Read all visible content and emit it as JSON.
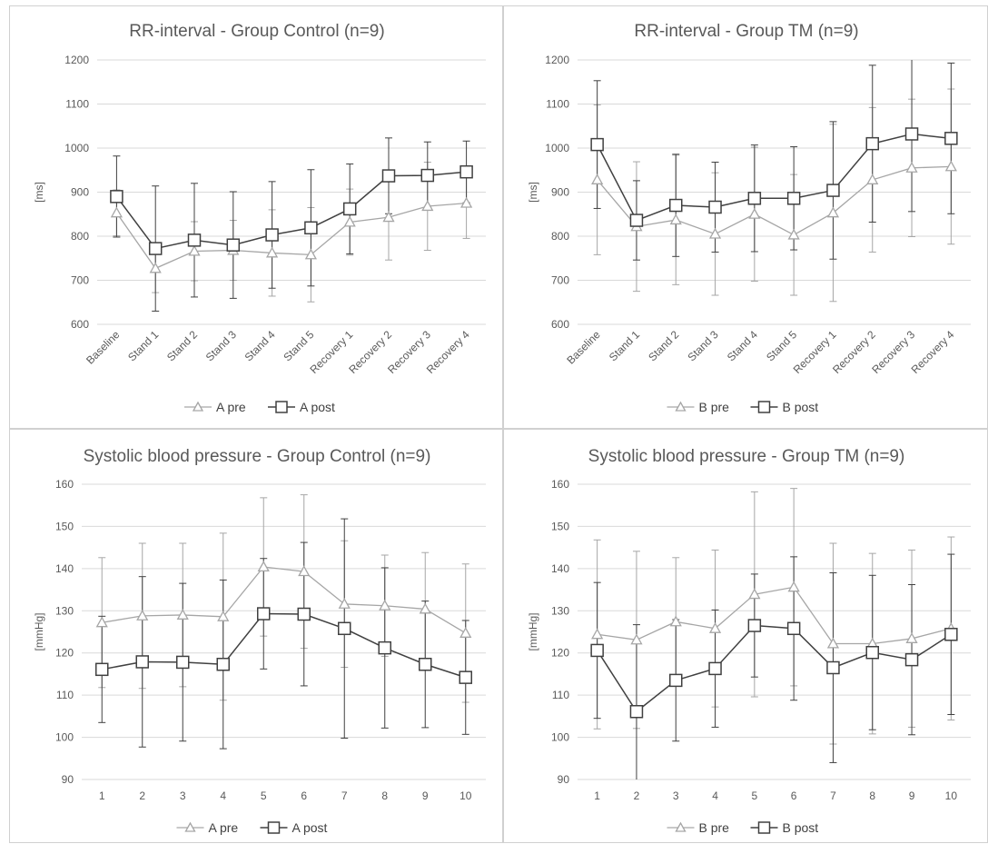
{
  "chart_data": [
    {
      "type": "line",
      "title": "RR-interval - Group Control (n=9)",
      "ylabel": "[ms]",
      "xlabel": "",
      "ylim": [
        600,
        1200
      ],
      "yticks": [
        600,
        700,
        800,
        900,
        1000,
        1100,
        1200
      ],
      "categories": [
        "Baseline",
        "Stand 1",
        "Stand 2",
        "Stand 3",
        "Stand 4",
        "Stand 5",
        "Recovery 1",
        "Recovery 2",
        "Recovery 3",
        "Recovery 4"
      ],
      "rotate_labels": true,
      "grid": true,
      "legend": "bottom",
      "series": [
        {
          "name": "A pre",
          "marker": "triangle",
          "color": "#a6a6a6",
          "values": [
            853,
            727,
            766,
            768,
            762,
            758,
            832,
            843,
            868,
            875
          ],
          "errors": [
            52,
            55,
            67,
            68,
            98,
            107,
            75,
            97,
            100,
            80
          ]
        },
        {
          "name": "A post",
          "marker": "square",
          "color": "#404040",
          "values": [
            890,
            772,
            791,
            780,
            803,
            819,
            862,
            937,
            938,
            946
          ],
          "errors": [
            92,
            142,
            129,
            121,
            121,
            132,
            102,
            86,
            76,
            70
          ]
        }
      ]
    },
    {
      "type": "line",
      "title": "RR-interval - Group TM (n=9)",
      "ylabel": "[ms]",
      "xlabel": "",
      "ylim": [
        600,
        1200
      ],
      "yticks": [
        600,
        700,
        800,
        900,
        1000,
        1100,
        1200
      ],
      "categories": [
        "Baseline",
        "Stand 1",
        "Stand 2",
        "Stand 3",
        "Stand 4",
        "Stand 5",
        "Recovery 1",
        "Recovery 2",
        "Recovery 3",
        "Recovery 4"
      ],
      "rotate_labels": true,
      "grid": true,
      "legend": "bottom",
      "series": [
        {
          "name": "B pre",
          "marker": "triangle",
          "color": "#a6a6a6",
          "values": [
            928,
            822,
            837,
            805,
            850,
            803,
            853,
            928,
            955,
            958
          ],
          "errors": [
            170,
            147,
            147,
            139,
            152,
            137,
            201,
            164,
            156,
            176
          ]
        },
        {
          "name": "B post",
          "marker": "square",
          "color": "#404040",
          "values": [
            1008,
            836,
            870,
            866,
            886,
            886,
            904,
            1010,
            1032,
            1022
          ],
          "errors": [
            145,
            90,
            116,
            102,
            121,
            117,
            156,
            178,
            176,
            171
          ]
        }
      ]
    },
    {
      "type": "line",
      "title": "Systolic blood pressure - Group Control (n=9)",
      "ylabel": "[mmHg]",
      "xlabel": "",
      "ylim": [
        90,
        160
      ],
      "yticks": [
        90,
        100,
        110,
        120,
        130,
        140,
        150,
        160
      ],
      "categories": [
        "1",
        "2",
        "3",
        "4",
        "5",
        "6",
        "7",
        "8",
        "9",
        "10"
      ],
      "rotate_labels": false,
      "grid": true,
      "legend": "bottom",
      "series": [
        {
          "name": "A pre",
          "marker": "triangle",
          "color": "#a6a6a6",
          "values": [
            127.2,
            128.8,
            129.0,
            128.6,
            140.4,
            139.3,
            131.6,
            131.2,
            130.4,
            124.7
          ],
          "errors": [
            15.4,
            17.2,
            17.0,
            19.8,
            16.4,
            18.2,
            15.0,
            12.0,
            13.4,
            16.4
          ]
        },
        {
          "name": "A post",
          "marker": "square",
          "color": "#404040",
          "values": [
            116.1,
            117.9,
            117.8,
            117.3,
            129.3,
            129.2,
            125.8,
            121.2,
            117.3,
            114.2
          ],
          "errors": [
            12.6,
            20.2,
            18.7,
            20.0,
            13.1,
            17.0,
            26.0,
            19.0,
            15.0,
            13.5
          ]
        }
      ]
    },
    {
      "type": "line",
      "title": "Systolic blood pressure - Group TM (n=9)",
      "ylabel": "[mmHg]",
      "xlabel": "",
      "ylim": [
        90,
        160
      ],
      "yticks": [
        90,
        100,
        110,
        120,
        130,
        140,
        150,
        160
      ],
      "categories": [
        "1",
        "2",
        "3",
        "4",
        "5",
        "6",
        "7",
        "8",
        "9",
        "10"
      ],
      "rotate_labels": false,
      "grid": true,
      "legend": "bottom",
      "series": [
        {
          "name": "B pre",
          "marker": "triangle",
          "color": "#a6a6a6",
          "values": [
            124.4,
            123.1,
            127.4,
            125.8,
            133.9,
            135.6,
            122.2,
            122.2,
            123.4,
            125.8
          ],
          "errors": [
            22.4,
            21.0,
            15.2,
            18.6,
            24.3,
            23.4,
            23.8,
            21.4,
            21.0,
            21.7
          ]
        },
        {
          "name": "B post",
          "marker": "square",
          "color": "#404040",
          "values": [
            120.6,
            106.1,
            113.5,
            116.3,
            126.5,
            125.8,
            116.5,
            120.1,
            118.4,
            124.4
          ],
          "errors": [
            16.1,
            20.6,
            14.4,
            13.9,
            12.2,
            17.0,
            22.5,
            18.3,
            17.8,
            19.0
          ]
        }
      ]
    }
  ]
}
